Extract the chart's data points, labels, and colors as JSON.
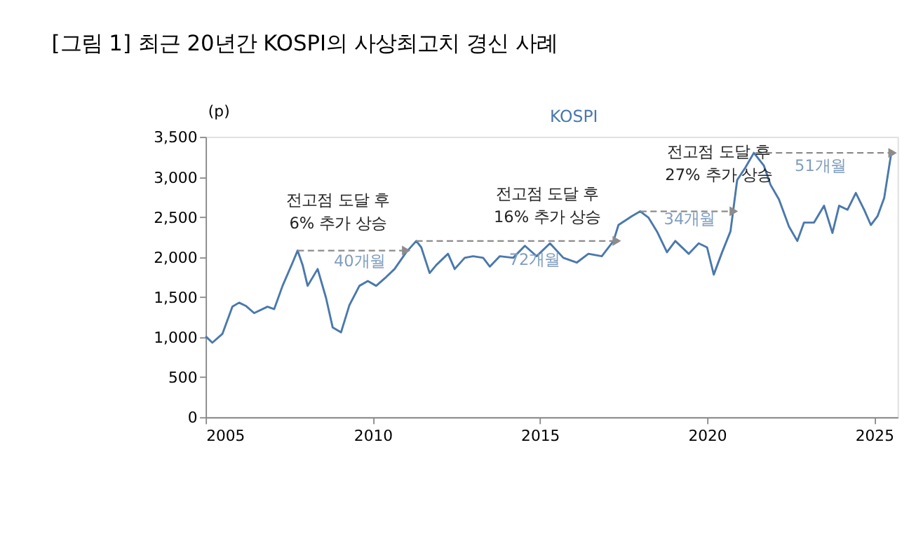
{
  "chart_data": {
    "type": "line",
    "title": "[그림 1] 최근 20년간 KOSPI의 사상최고치 경신 사례",
    "ylabel": "(p)",
    "xlim": [
      2005,
      2025.7
    ],
    "xticks": [
      2005,
      2010,
      2015,
      2020,
      2025
    ],
    "ylim": [
      0,
      3500
    ],
    "yticks": [
      {
        "value": 0,
        "label": "0"
      },
      {
        "value": 500,
        "label": "500"
      },
      {
        "value": 1000,
        "label": "1,000"
      },
      {
        "value": 1500,
        "label": "1,500"
      },
      {
        "value": 2000,
        "label": "2,000"
      },
      {
        "value": 2500,
        "label": "2,500"
      },
      {
        "value": 3000,
        "label": "3,000"
      },
      {
        "value": 3500,
        "label": "3,500"
      }
    ],
    "grid": false,
    "legend": "top",
    "line_style": "solid",
    "marker": "none",
    "series": [
      {
        "name": "KOSPI",
        "color": "#4a78ad",
        "x": [
          2005.0,
          2005.2,
          2005.5,
          2005.8,
          2006.0,
          2006.2,
          2006.45,
          2006.85,
          2007.05,
          2007.3,
          2007.6,
          2007.75,
          2007.9,
          2008.05,
          2008.35,
          2008.6,
          2008.8,
          2009.05,
          2009.3,
          2009.6,
          2009.85,
          2010.1,
          2010.4,
          2010.65,
          2011.0,
          2011.3,
          2011.45,
          2011.7,
          2011.9,
          2012.25,
          2012.45,
          2012.75,
          2013.0,
          2013.3,
          2013.5,
          2013.8,
          2014.2,
          2014.55,
          2014.9,
          2015.3,
          2015.7,
          2016.1,
          2016.45,
          2016.85,
          2017.2,
          2017.35,
          2017.75,
          2018.0,
          2018.25,
          2018.5,
          2018.8,
          2019.05,
          2019.45,
          2019.75,
          2020.0,
          2020.2,
          2020.45,
          2020.7,
          2020.9,
          2021.15,
          2021.4,
          2021.7,
          2021.9,
          2022.15,
          2022.45,
          2022.7,
          2022.9,
          2023.2,
          2023.5,
          2023.75,
          2023.95,
          2024.2,
          2024.45,
          2024.7,
          2024.9,
          2025.1,
          2025.3,
          2025.5,
          2025.6
        ],
        "values": [
          1010,
          930,
          1040,
          1380,
          1430,
          1390,
          1300,
          1380,
          1350,
          1640,
          1930,
          2080,
          1900,
          1640,
          1850,
          1490,
          1120,
          1060,
          1400,
          1640,
          1700,
          1640,
          1750,
          1850,
          2060,
          2200,
          2120,
          1800,
          1900,
          2040,
          1850,
          1990,
          2010,
          1990,
          1880,
          2010,
          1990,
          2140,
          2010,
          2170,
          1990,
          1930,
          2040,
          2010,
          2200,
          2400,
          2510,
          2570,
          2490,
          2320,
          2060,
          2200,
          2040,
          2170,
          2120,
          1780,
          2060,
          2320,
          2960,
          3120,
          3300,
          3140,
          2900,
          2720,
          2380,
          2200,
          2430,
          2430,
          2640,
          2300,
          2640,
          2590,
          2800,
          2590,
          2400,
          2510,
          2740,
          3270,
          3300
        ]
      },
      {
        "color": "#8c8c8c",
        "line_style": "dashed",
        "marker": "triangle",
        "x": [
          2007.75,
          2011.0
        ],
        "values": [
          2080,
          2080
        ]
      },
      {
        "color": "#8c8c8c",
        "line_style": "dashed",
        "marker": "triangle",
        "x": [
          2011.3,
          2017.3
        ],
        "values": [
          2200,
          2200
        ]
      },
      {
        "color": "#8c8c8c",
        "line_style": "dashed",
        "marker": "triangle",
        "x": [
          2018.0,
          2020.8
        ],
        "values": [
          2570,
          2570
        ]
      },
      {
        "color": "#8c8c8c",
        "line_style": "dashed",
        "marker": "triangle",
        "x": [
          2021.45,
          2025.55
        ],
        "values": [
          3300,
          3300
        ]
      }
    ],
    "annotations": [
      "전고점 도달 후\n6% 추가 상승",
      "40개월",
      "전고점 도달 후\n16% 추가 상승",
      "72개월",
      "전고점 도달 후\n27% 추가 상승",
      "34개월",
      "51개월"
    ]
  }
}
